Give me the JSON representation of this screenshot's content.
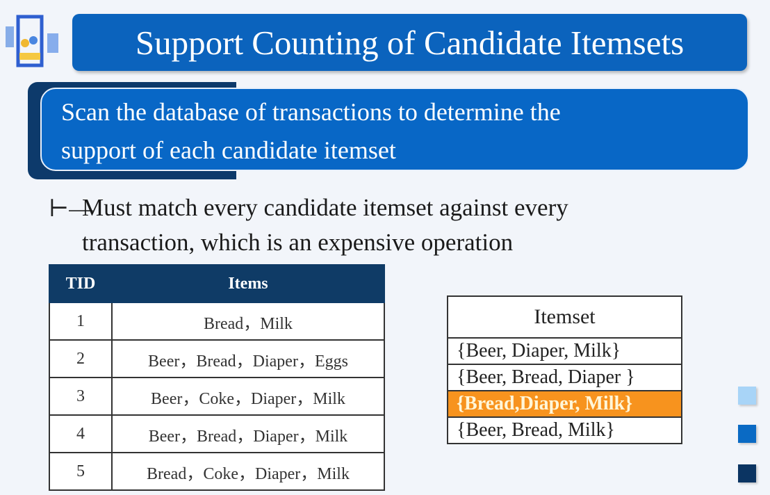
{
  "title": "Support Counting of Candidate Itemsets",
  "subtitle": {
    "line1": "Scan the database of transactions to determine the",
    "line2": "support of each candidate itemset"
  },
  "bullet": {
    "icon": "tee-dash-icon",
    "mark": "⊢—",
    "line1": "Must match every candidate itemset against every",
    "line2": "transaction, which is an expensive operation"
  },
  "transactions": {
    "headers": [
      "TID",
      "Items"
    ],
    "rows": [
      {
        "tid": "1",
        "items": "Bread，Milk"
      },
      {
        "tid": "2",
        "items": "Beer，Bread，Diaper，Eggs"
      },
      {
        "tid": "3",
        "items": "Beer，Coke，Diaper，Milk"
      },
      {
        "tid": "4",
        "items": "Beer，Bread，Diaper，Milk"
      },
      {
        "tid": "5",
        "items": "Bread，Coke，Diaper，Milk"
      }
    ]
  },
  "itemsets": {
    "header": "Itemset",
    "rows": [
      "{Beer, Diaper, Milk}",
      "{Beer, Bread, Diaper }",
      "{Bread,Diaper, Milk}",
      "{Beer, Bread, Milk}"
    ],
    "highlighted_index": 2
  },
  "colors": {
    "title_blue": "#0b63bd",
    "navy": "#0f3b66",
    "highlight": "#f7931e",
    "square_light": "#a8d4f7",
    "square_mid": "#0a6ac4",
    "square_dark": "#0b3462"
  }
}
